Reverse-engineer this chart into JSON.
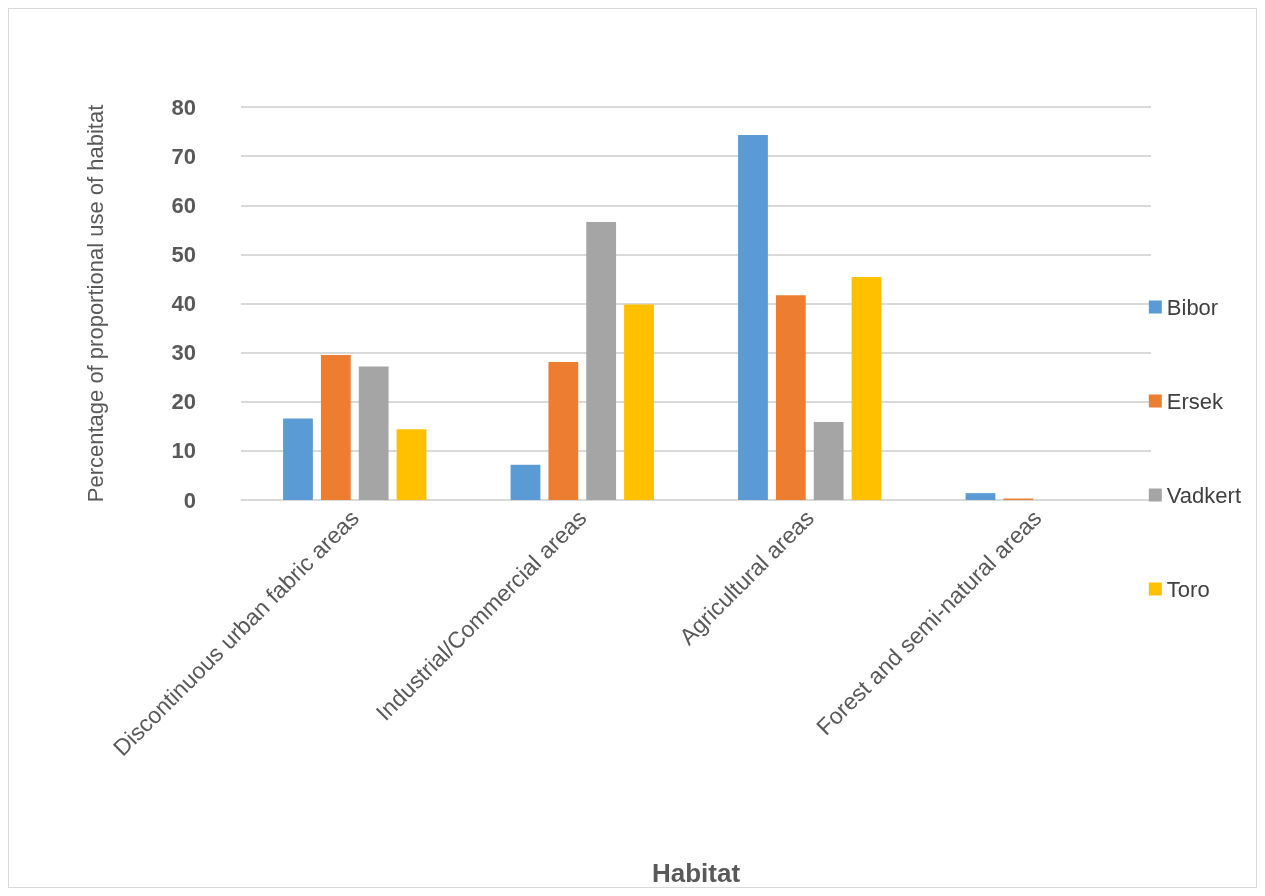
{
  "chart_data": {
    "type": "bar",
    "xlabel": "Habitat",
    "ylabel": "Percentage of proportional use of habitat",
    "categories": [
      "Discontinuous urban fabric areas",
      "Industrial/Commercial areas",
      "Agricultural areas",
      "Forest and semi-natural areas"
    ],
    "series": [
      {
        "name": "Bibor",
        "color": "#5b9bd5",
        "values": [
          16.6,
          7.2,
          74.3,
          1.4
        ]
      },
      {
        "name": "Ersek",
        "color": "#ed7d31",
        "values": [
          29.5,
          28.1,
          41.7,
          0.3
        ]
      },
      {
        "name": "Vadkert",
        "color": "#a5a5a5",
        "values": [
          27.2,
          56.6,
          15.9,
          null
        ]
      },
      {
        "name": "Toro",
        "color": "#ffc000",
        "values": [
          14.4,
          39.8,
          45.4,
          null
        ]
      }
    ],
    "ylim": [
      0,
      80
    ],
    "yticks": [
      0,
      10,
      20,
      30,
      40,
      50,
      60,
      70,
      80
    ],
    "grid": "y",
    "legend": "right"
  }
}
